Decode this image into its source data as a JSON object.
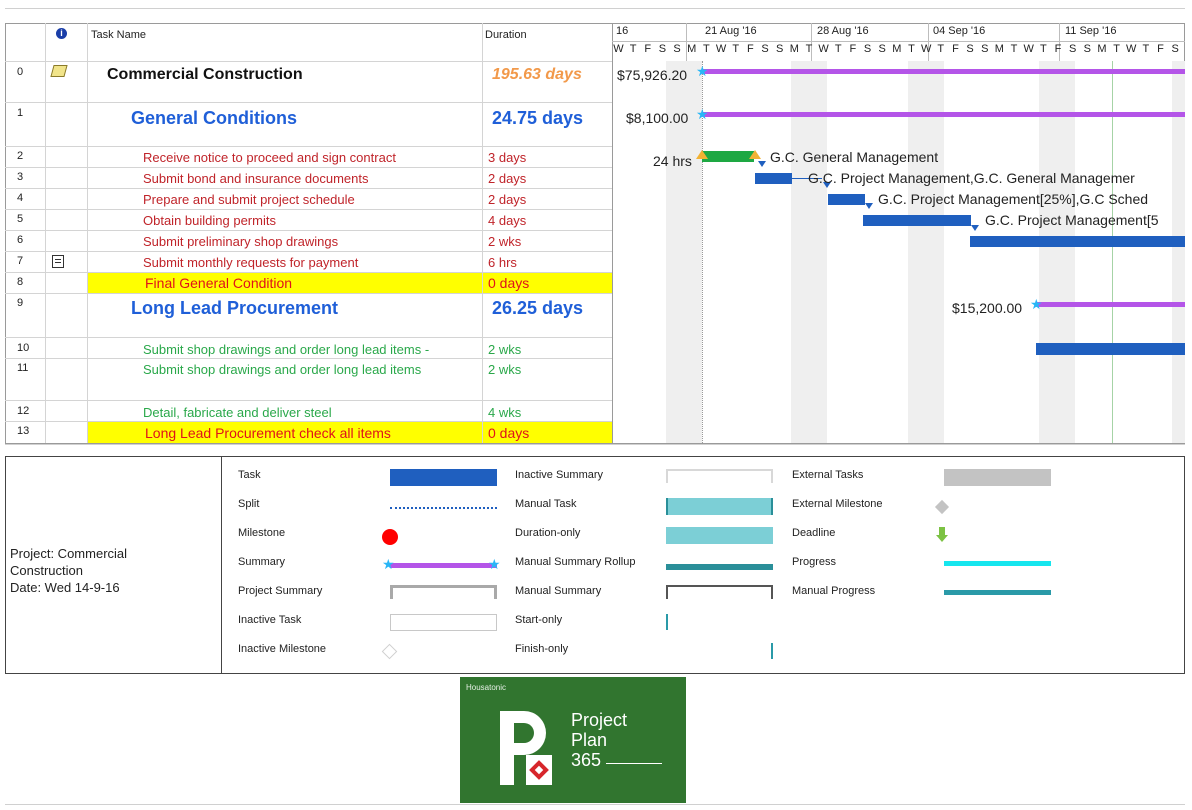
{
  "header": {
    "info_icon": "info-icon",
    "task_name": "Task Name",
    "duration": "Duration"
  },
  "timescale": {
    "weeks": [
      "16",
      "21 Aug '16",
      "28 Aug '16",
      "04 Sep '16",
      "11 Sep '16"
    ],
    "days": [
      "W",
      "T",
      "F",
      "S",
      "S",
      "M",
      "T",
      "W",
      "T",
      "F",
      "S",
      "S",
      "M",
      "T",
      "W",
      "T",
      "F",
      "S",
      "S",
      "M",
      "T",
      "W",
      "T",
      "F",
      "S",
      "S",
      "M",
      "T",
      "W",
      "T",
      "F",
      "S",
      "S",
      "M",
      "T",
      "W",
      "T",
      "F",
      "S"
    ]
  },
  "tasks": [
    {
      "id": "0",
      "name": "Commercial Construction",
      "duration": "195.63 days",
      "icon": "notes-icon"
    },
    {
      "id": "1",
      "name": "General Conditions",
      "duration": "24.75 days"
    },
    {
      "id": "2",
      "name": "Receive notice to proceed and sign contract",
      "duration": "3 days"
    },
    {
      "id": "3",
      "name": "Submit bond and insurance documents",
      "duration": "2 days"
    },
    {
      "id": "4",
      "name": "Prepare and submit project schedule",
      "duration": "2 days"
    },
    {
      "id": "5",
      "name": "Obtain building permits",
      "duration": "4 days"
    },
    {
      "id": "6",
      "name": "Submit preliminary shop drawings",
      "duration": "2 wks"
    },
    {
      "id": "7",
      "name": "Submit monthly requests for payment",
      "duration": "6 hrs",
      "icon": "recurring-task-icon"
    },
    {
      "id": "8",
      "name": "Final General Condition",
      "duration": "0 days"
    },
    {
      "id": "9",
      "name": "Long Lead Procurement",
      "duration": "26.25 days"
    },
    {
      "id": "10",
      "name": "Submit shop drawings and order long lead items -",
      "duration": "2 wks"
    },
    {
      "id": "11",
      "name": "Submit shop drawings and order long lead items",
      "duration": "2 wks"
    },
    {
      "id": "12",
      "name": "Detail, fabricate and deliver steel",
      "duration": "4 wks"
    },
    {
      "id": "13",
      "name": "Long Lead Procurement check all items",
      "duration": "0 days"
    }
  ],
  "gantt_labels": {
    "cost0": "$75,926.20",
    "cost1": "$8,100.00",
    "hrs2": "24 hrs",
    "res2": "G.C. General Management",
    "res3": "G.C. Project Management,G.C. General Managemer",
    "res4": "G.C. Project Management[25%],G.C Sched",
    "res5": "G.C. Project Management[5",
    "cost9": "$15,200.00"
  },
  "legend": {
    "project": "Project: Commercial Construction",
    "date": "Date: Wed 14-9-16",
    "col1": [
      "Task",
      "Split",
      "Milestone",
      "Summary",
      "Project Summary",
      "Inactive Task",
      "Inactive Milestone"
    ],
    "col2": [
      "Inactive Summary",
      "Manual Task",
      "Duration-only",
      "Manual Summary Rollup",
      "Manual Summary",
      "Start-only",
      "Finish-only"
    ],
    "col3": [
      "External Tasks",
      "External Milestone",
      "Deadline",
      "Progress",
      "Manual Progress"
    ]
  },
  "logo": {
    "brand": "Housatonic",
    "line1": "Project",
    "line2": "Plan",
    "line3": "365"
  },
  "colors": {
    "task_bar": "#1f5fbf",
    "summary_bar": "#b455e8",
    "summary_name": "#1f5fd8",
    "red_text": "#c0242a",
    "green_text": "#2aa84a",
    "highlight": "#ffff00",
    "logo_green": "#31752f",
    "progress_green": "#1ea843"
  }
}
